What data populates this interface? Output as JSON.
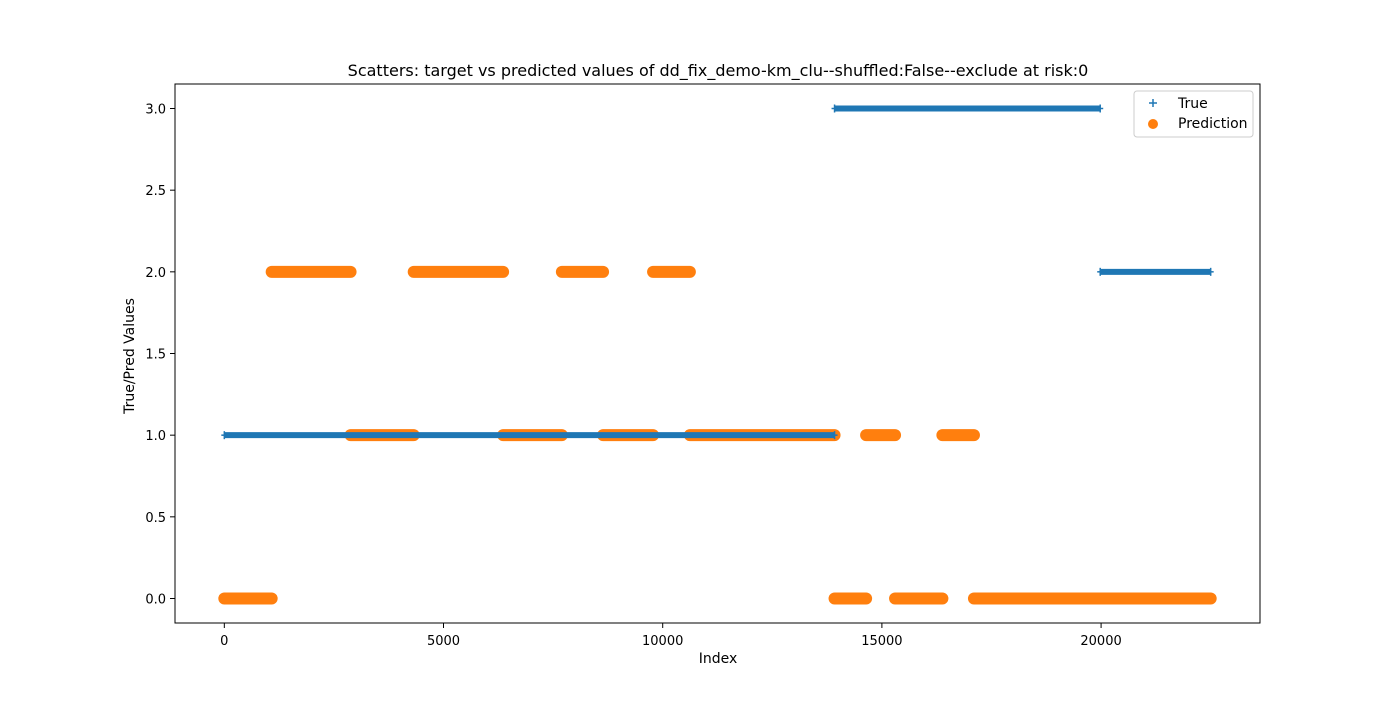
{
  "chart_data": {
    "type": "scatter",
    "title": "Scatters: target vs predicted values of dd_fix_demo-km_clu--shuffled:False--exclude at risk:0",
    "xlabel": "Index",
    "ylabel": "True/Pred Values",
    "xlim": [
      -1125,
      23625
    ],
    "ylim": [
      -0.15,
      3.15
    ],
    "x_ticks": [
      0,
      5000,
      10000,
      15000,
      20000
    ],
    "x_tick_labels": [
      "0",
      "5000",
      "10000",
      "15000",
      "20000"
    ],
    "y_ticks": [
      0.0,
      0.5,
      1.0,
      1.5,
      2.0,
      2.5,
      3.0
    ],
    "y_tick_labels": [
      "0.0",
      "0.5",
      "1.0",
      "1.5",
      "2.0",
      "2.5",
      "3.0"
    ],
    "grid": false,
    "legend_position": "top-right",
    "series": [
      {
        "name": "True",
        "marker": "plus",
        "color": "#1f77b4",
        "segments": [
          {
            "x_start": 0,
            "x_end": 13920,
            "y": 1
          },
          {
            "x_start": 13920,
            "x_end": 19980,
            "y": 3
          },
          {
            "x_start": 19980,
            "x_end": 22500,
            "y": 2
          }
        ]
      },
      {
        "name": "Prediction",
        "marker": "circle",
        "color": "#ff7f0e",
        "segments": [
          {
            "x_start": 0,
            "x_end": 1080,
            "y": 0
          },
          {
            "x_start": 1080,
            "x_end": 2880,
            "y": 2
          },
          {
            "x_start": 2880,
            "x_end": 4320,
            "y": 1
          },
          {
            "x_start": 4320,
            "x_end": 6360,
            "y": 2
          },
          {
            "x_start": 6360,
            "x_end": 7700,
            "y": 1
          },
          {
            "x_start": 7700,
            "x_end": 8640,
            "y": 2
          },
          {
            "x_start": 8640,
            "x_end": 9780,
            "y": 1
          },
          {
            "x_start": 9780,
            "x_end": 10620,
            "y": 2
          },
          {
            "x_start": 10620,
            "x_end": 13920,
            "y": 1
          },
          {
            "x_start": 13920,
            "x_end": 14640,
            "y": 0
          },
          {
            "x_start": 14640,
            "x_end": 15300,
            "y": 1
          },
          {
            "x_start": 15300,
            "x_end": 16380,
            "y": 0
          },
          {
            "x_start": 16380,
            "x_end": 17100,
            "y": 1
          },
          {
            "x_start": 17100,
            "x_end": 22500,
            "y": 0
          }
        ]
      }
    ]
  }
}
